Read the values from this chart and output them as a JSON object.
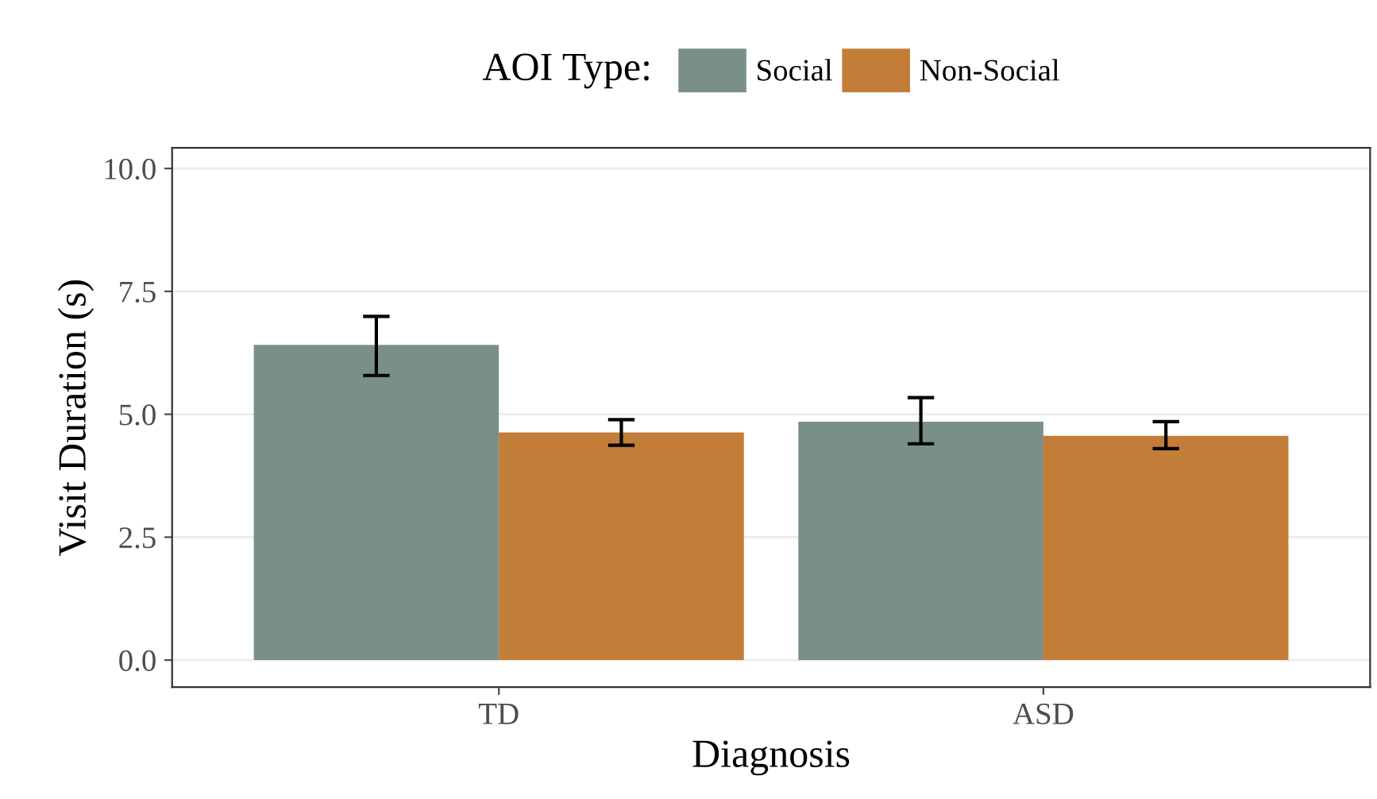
{
  "chart_data": {
    "type": "bar",
    "xlabel": "Diagnosis",
    "ylabel": "Visit Duration (s)",
    "legend_title": "AOI Type:",
    "categories": [
      "TD",
      "ASD"
    ],
    "series": [
      {
        "name": "Social",
        "color": "#7a8f86",
        "values": [
          6.41,
          4.85
        ],
        "errors": [
          [
            5.79,
            6.99
          ],
          [
            4.4,
            5.34
          ]
        ]
      },
      {
        "name": "Non-Social",
        "color": "#c27d38",
        "values": [
          4.63,
          4.56
        ],
        "errors": [
          [
            4.37,
            4.89
          ],
          [
            4.3,
            4.85
          ]
        ]
      }
    ],
    "ylim": [
      -0.55,
      10.42
    ],
    "yticks": [
      {
        "value": 0,
        "label": "0.0"
      },
      {
        "value": 2.5,
        "label": "2.5"
      },
      {
        "value": 5,
        "label": "5.0"
      },
      {
        "value": 7.5,
        "label": "7.5"
      },
      {
        "value": 10,
        "label": "10.0"
      }
    ],
    "grid": "y",
    "legend": "top"
  }
}
